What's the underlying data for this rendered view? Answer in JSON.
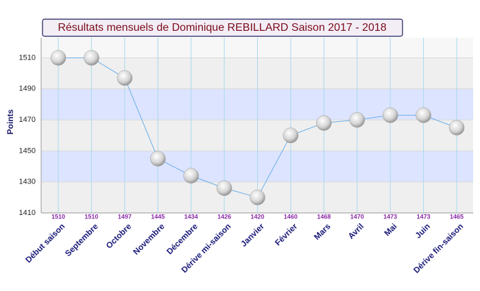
{
  "chart_data": {
    "type": "line",
    "title": "Résultats mensuels de Dominique REBILLARD Saison 2017 - 2018",
    "y_label": "Points",
    "categories": [
      "Début saison",
      "Septembre",
      "Octobre",
      "Novembre",
      "Décembre",
      "Dérive mi-saison",
      "Janvier",
      "Février",
      "Mars",
      "Avril",
      "Mai",
      "Juin",
      "Dérive fin-saison"
    ],
    "series": [
      {
        "name": "Points",
        "color": "#6aaee8",
        "values": [
          1510,
          1510,
          1497,
          1445,
          1434,
          1426,
          1420,
          1460,
          1468,
          1470,
          1473,
          1473,
          1465
        ]
      }
    ],
    "ylim": [
      1410,
      1523
    ],
    "yticks": [
      1410,
      1430,
      1450,
      1470,
      1490,
      1510
    ],
    "grid": true
  }
}
